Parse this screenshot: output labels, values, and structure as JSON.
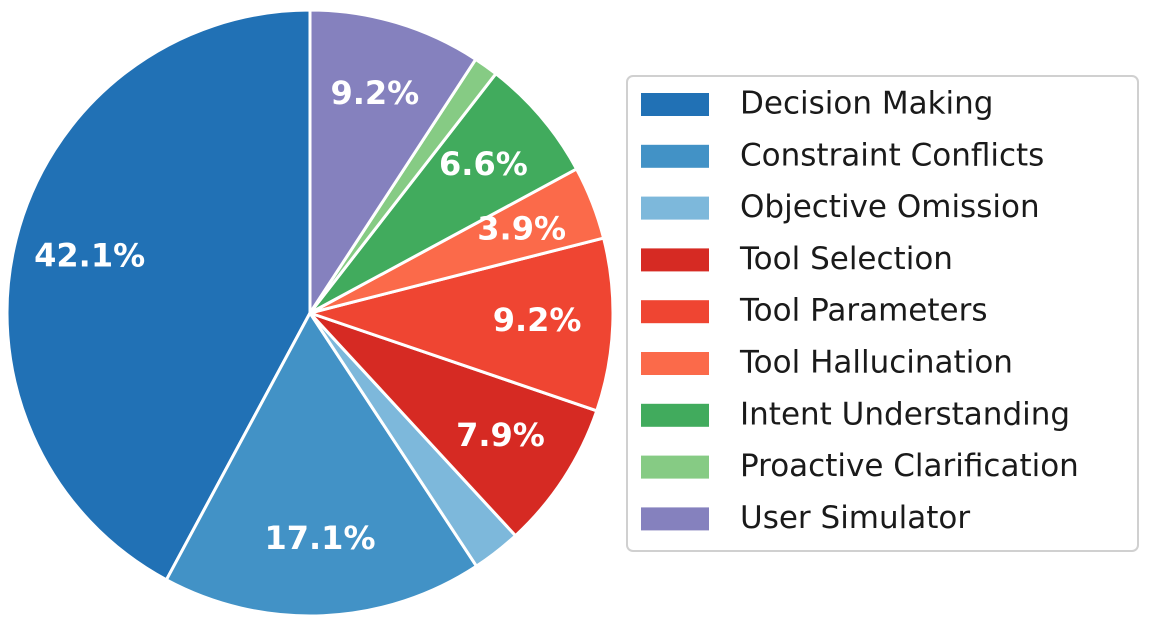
{
  "chart_data": {
    "type": "pie",
    "categories": [
      "Decision Making",
      "Constraint Conflicts",
      "Objective Omission",
      "Tool Selection",
      "Tool Parameters",
      "Tool Hallucination",
      "Intent Understanding",
      "Proactive Clarification",
      "User Simulator"
    ],
    "values": [
      42.1,
      17.1,
      2.6,
      7.9,
      9.2,
      3.9,
      6.6,
      1.3,
      9.2
    ],
    "value_labels": [
      "42.1%",
      "17.1%",
      null,
      "7.9%",
      "9.2%",
      "3.9%",
      "6.6%",
      null,
      "9.2%"
    ],
    "colors": [
      "#2171b5",
      "#4292c6",
      "#7db8db",
      "#d62a23",
      "#ef4532",
      "#fb6a4a",
      "#41ab5d",
      "#86cb84",
      "#8581be"
    ],
    "legend": "right"
  }
}
